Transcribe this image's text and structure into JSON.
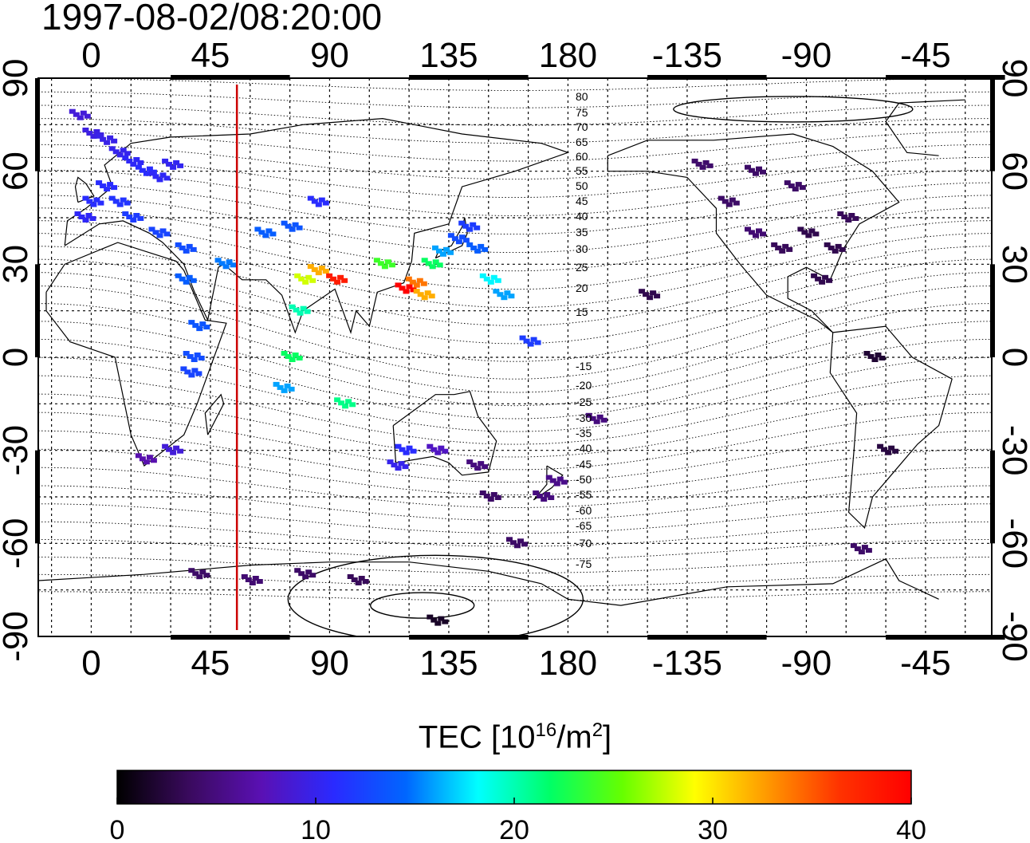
{
  "title": "1997-08-02/08:20:00",
  "colorbar": {
    "title_main": "TEC  [10",
    "title_sup1": "16",
    "title_mid": "/m",
    "title_sup2": "2",
    "title_end": "]",
    "range": [
      0,
      40
    ],
    "tick_labels": [
      "0",
      "10",
      "20",
      "30",
      "40"
    ],
    "stops": [
      "#000000",
      "#3a0a5e",
      "#5a10b4",
      "#2a2aff",
      "#0066ff",
      "#00ffff",
      "#00ff66",
      "#66ff00",
      "#ffff00",
      "#ff9900",
      "#ff3300",
      "#ff0000"
    ]
  },
  "map": {
    "lon_ticks_top": [
      "0",
      "45",
      "90",
      "135",
      "180",
      "-135",
      "-90",
      "-45"
    ],
    "lon_ticks_bottom": [
      "0",
      "45",
      "90",
      "135",
      "180",
      "-135",
      "-90",
      "-45"
    ],
    "lat_ticks_left": [
      "90",
      "60",
      "30",
      "0",
      "-30",
      "-60",
      "-90"
    ],
    "lat_ticks_right": [
      "90",
      "60",
      "30",
      "0",
      "-30",
      "-60",
      "-90"
    ],
    "contour_labels": [
      "80",
      "75",
      "70",
      "65",
      "60",
      "55",
      "50",
      "45",
      "40",
      "35",
      "30",
      "25",
      "20",
      "15",
      "-15",
      "-20",
      "-25",
      "-30",
      "-35",
      "-40",
      "-45",
      "-50",
      "-55",
      "-60",
      "-65",
      "-70",
      "-75"
    ],
    "terminator_color": "#cc0000",
    "terminator_lon": 55
  },
  "tec_cells": [
    {
      "lon": -5,
      "lat": 78,
      "tec": 9
    },
    {
      "lon": 0,
      "lat": 72,
      "tec": 9.5
    },
    {
      "lon": 5,
      "lat": 70,
      "tec": 9.8
    },
    {
      "lon": 10,
      "lat": 66,
      "tec": 10
    },
    {
      "lon": 15,
      "lat": 63,
      "tec": 10.5
    },
    {
      "lon": 20,
      "lat": 60,
      "tec": 11
    },
    {
      "lon": 25,
      "lat": 58,
      "tec": 10.5
    },
    {
      "lon": 30,
      "lat": 62,
      "tec": 10.2
    },
    {
      "lon": 5,
      "lat": 55,
      "tec": 11
    },
    {
      "lon": 10,
      "lat": 50,
      "tec": 11.5
    },
    {
      "lon": 0,
      "lat": 50,
      "tec": 11
    },
    {
      "lon": -3,
      "lat": 45,
      "tec": 10.5
    },
    {
      "lon": 15,
      "lat": 45,
      "tec": 12
    },
    {
      "lon": 25,
      "lat": 40,
      "tec": 12.5
    },
    {
      "lon": 35,
      "lat": 35,
      "tec": 13
    },
    {
      "lon": 35,
      "lat": 25,
      "tec": 14
    },
    {
      "lon": 50,
      "lat": 30,
      "tec": 15
    },
    {
      "lon": 40,
      "lat": 10,
      "tec": 13.5
    },
    {
      "lon": 38,
      "lat": 0,
      "tec": 13
    },
    {
      "lon": 37,
      "lat": -5,
      "tec": 12.5
    },
    {
      "lon": 30,
      "lat": -30,
      "tec": 9
    },
    {
      "lon": 20,
      "lat": -33,
      "tec": 7
    },
    {
      "lon": 78,
      "lat": 15,
      "tec": 20
    },
    {
      "lon": 80,
      "lat": 25,
      "tec": 28
    },
    {
      "lon": 85,
      "lat": 28,
      "tec": 32
    },
    {
      "lon": 92,
      "lat": 25,
      "tec": 38
    },
    {
      "lon": 75,
      "lat": 0,
      "tec": 22
    },
    {
      "lon": 72,
      "lat": -10,
      "tec": 16
    },
    {
      "lon": 95,
      "lat": -15,
      "tec": 21
    },
    {
      "lon": 65,
      "lat": 40,
      "tec": 14
    },
    {
      "lon": 75,
      "lat": 42,
      "tec": 13.5
    },
    {
      "lon": 85,
      "lat": 50,
      "tec": 11
    },
    {
      "lon": 110,
      "lat": 30,
      "tec": 24
    },
    {
      "lon": 118,
      "lat": 22,
      "tec": 40
    },
    {
      "lon": 122,
      "lat": 24,
      "tec": 34
    },
    {
      "lon": 125,
      "lat": 20,
      "tec": 32
    },
    {
      "lon": 128,
      "lat": 30,
      "tec": 22
    },
    {
      "lon": 132,
      "lat": 34,
      "tec": 16
    },
    {
      "lon": 138,
      "lat": 38,
      "tec": 13
    },
    {
      "lon": 142,
      "lat": 42,
      "tec": 12
    },
    {
      "lon": 145,
      "lat": 35,
      "tec": 14
    },
    {
      "lon": 150,
      "lat": 25,
      "tec": 18
    },
    {
      "lon": 155,
      "lat": 20,
      "tec": 16
    },
    {
      "lon": 118,
      "lat": -30,
      "tec": 11
    },
    {
      "lon": 115,
      "lat": -35,
      "tec": 10
    },
    {
      "lon": 130,
      "lat": -30,
      "tec": 8
    },
    {
      "lon": 145,
      "lat": -35,
      "tec": 5
    },
    {
      "lon": 150,
      "lat": -45,
      "tec": 4
    },
    {
      "lon": 170,
      "lat": -45,
      "tec": 5
    },
    {
      "lon": 175,
      "lat": -40,
      "tec": 5.5
    },
    {
      "lon": 160,
      "lat": -60,
      "tec": 4
    },
    {
      "lon": 165,
      "lat": 5,
      "tec": 12
    },
    {
      "lon": -170,
      "lat": -20,
      "tec": 5
    },
    {
      "lon": -150,
      "lat": 20,
      "tec": 3
    },
    {
      "lon": -120,
      "lat": 50,
      "tec": 4
    },
    {
      "lon": -110,
      "lat": 40,
      "tec": 4.5
    },
    {
      "lon": -100,
      "lat": 35,
      "tec": 3.5
    },
    {
      "lon": -90,
      "lat": 40,
      "tec": 3
    },
    {
      "lon": -80,
      "lat": 35,
      "tec": 3
    },
    {
      "lon": -75,
      "lat": 45,
      "tec": 3.5
    },
    {
      "lon": -95,
      "lat": 55,
      "tec": 4
    },
    {
      "lon": -110,
      "lat": 60,
      "tec": 4
    },
    {
      "lon": -130,
      "lat": 62,
      "tec": 4.2
    },
    {
      "lon": -85,
      "lat": 25,
      "tec": 3
    },
    {
      "lon": -65,
      "lat": 0,
      "tec": 2
    },
    {
      "lon": -60,
      "lat": -30,
      "tec": 2.5
    },
    {
      "lon": -70,
      "lat": -62,
      "tec": 4
    },
    {
      "lon": 40,
      "lat": -70,
      "tec": 4
    },
    {
      "lon": 60,
      "lat": -72,
      "tec": 4.5
    },
    {
      "lon": 80,
      "lat": -70,
      "tec": 4
    },
    {
      "lon": 100,
      "lat": -72,
      "tec": 3.5
    },
    {
      "lon": 130,
      "lat": -85,
      "tec": 1.5
    }
  ],
  "terminator": "#cc0000"
}
